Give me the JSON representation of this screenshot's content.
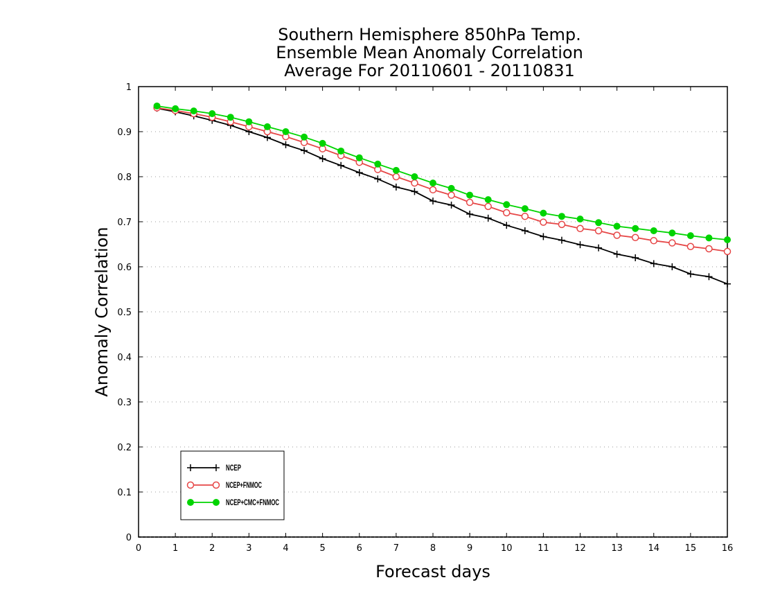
{
  "chart_data": {
    "type": "line",
    "title_lines": [
      "Southern Hemisphere 850hPa Temp.",
      "Ensemble Mean Anomaly Correlation",
      "Average For 20110601 - 20110831"
    ],
    "xlabel": "Forecast days",
    "ylabel": "Anomaly Correlation",
    "xlim": [
      0,
      16
    ],
    "ylim": [
      0,
      1
    ],
    "xticks": [
      "0",
      "1",
      "2",
      "3",
      "4",
      "5",
      "6",
      "7",
      "8",
      "9",
      "10",
      "11",
      "12",
      "13",
      "14",
      "15",
      "16"
    ],
    "yticks": [
      "0",
      "0.1",
      "0.2",
      "0.3",
      "0.4",
      "0.5",
      "0.6",
      "0.7",
      "0.8",
      "0.9",
      "1"
    ],
    "grid": "horizontal-dotted",
    "legend_position": "bottom-left",
    "x": [
      0.5,
      1,
      1.5,
      2,
      2.5,
      3,
      3.5,
      4,
      4.5,
      5,
      5.5,
      6,
      6.5,
      7,
      7.5,
      8,
      8.5,
      9,
      9.5,
      10,
      10.5,
      11,
      11.5,
      12,
      12.5,
      13,
      13.5,
      14,
      14.5,
      15,
      15.5,
      16
    ],
    "series": [
      {
        "name": "NCEP",
        "color": "#000000",
        "marker": "plus",
        "values": [
          0.952,
          0.944,
          0.935,
          0.925,
          0.914,
          0.9,
          0.887,
          0.871,
          0.858,
          0.84,
          0.825,
          0.809,
          0.795,
          0.777,
          0.767,
          0.746,
          0.737,
          0.717,
          0.708,
          0.692,
          0.68,
          0.667,
          0.659,
          0.649,
          0.642,
          0.628,
          0.62,
          0.607,
          0.6,
          0.584,
          0.578,
          0.562
        ]
      },
      {
        "name": "NCEP+FNMOC",
        "color": "#e64646",
        "marker": "open-circle",
        "values": [
          0.953,
          0.947,
          0.94,
          0.932,
          0.922,
          0.911,
          0.9,
          0.889,
          0.876,
          0.862,
          0.847,
          0.832,
          0.816,
          0.8,
          0.786,
          0.771,
          0.759,
          0.743,
          0.734,
          0.72,
          0.712,
          0.699,
          0.694,
          0.685,
          0.68,
          0.67,
          0.665,
          0.658,
          0.653,
          0.645,
          0.64,
          0.634
        ]
      },
      {
        "name": "NCEP+CMC+FNMOC",
        "color": "#00d400",
        "marker": "filled-circle",
        "values": [
          0.957,
          0.951,
          0.946,
          0.94,
          0.932,
          0.922,
          0.911,
          0.9,
          0.888,
          0.874,
          0.857,
          0.842,
          0.828,
          0.814,
          0.8,
          0.786,
          0.774,
          0.759,
          0.749,
          0.738,
          0.729,
          0.719,
          0.712,
          0.706,
          0.698,
          0.69,
          0.685,
          0.68,
          0.675,
          0.669,
          0.664,
          0.66
        ]
      }
    ]
  }
}
